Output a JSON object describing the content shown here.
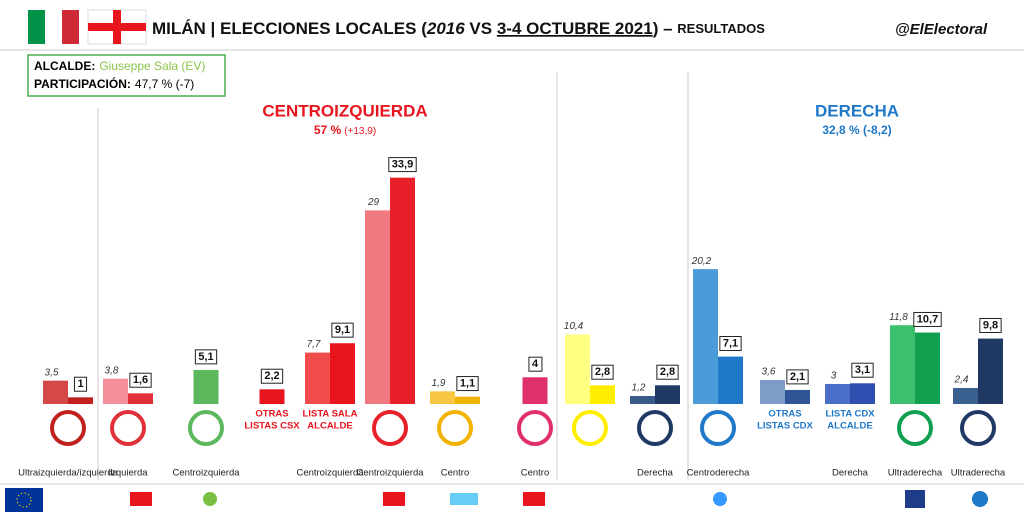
{
  "chart_data": {
    "type": "bar",
    "title_parts": [
      "MILÁN | ELECCIONES LOCALES (",
      "2016",
      " VS ",
      "3-4 OCTUBRE 2021",
      ") – ",
      "RESULTADOS"
    ],
    "handle": "@ElElectoral",
    "info": {
      "alcalde_label": "ALCALDE:",
      "alcalde": "Giuseppe Sala (EV)",
      "participacion_label": "PARTICIPACIÓN:",
      "participacion": "47,7 % (-7)"
    },
    "blocs": [
      {
        "name": "CENTROIZQUIERDA",
        "result": "57 %",
        "change": "(+13,9)",
        "color": "#e8141e"
      },
      {
        "name": "DERECHA",
        "result": "32,8 % (-8,2)",
        "change": null,
        "color": "#1f78c8"
      }
    ],
    "categories": [
      "Ultraizquierda/izquierda",
      "Izquierda",
      "Centroizquierda",
      null,
      "Centroizquierda",
      "Centroizquierda",
      "Centro",
      "Centro",
      null,
      "Derecha",
      "Centroderecha",
      null,
      "Derecha",
      "Ultraderecha",
      "Ultraderecha"
    ],
    "party_labels": [
      null,
      null,
      null,
      [
        "OTRAS",
        "LISTAS CSX"
      ],
      [
        "LISTA SALA",
        "ALCALDE"
      ],
      null,
      null,
      null,
      null,
      null,
      null,
      [
        "OTRAS",
        "LISTAS CDX"
      ],
      [
        "LISTA CDX",
        "ALCALDE"
      ],
      null,
      null
    ],
    "series": [
      {
        "colors": [
          "#d54848",
          "#f4909c",
          null,
          null,
          "#f24b4b",
          "#f07a80",
          "#f7c744",
          null,
          "#ffff80",
          "#3a5a8a",
          "#4b9bd9",
          "#7f9cc8",
          "#4b6fc8",
          "#3cc070",
          "#3a6090"
        ],
        "values": [
          3.5,
          3.8,
          null,
          null,
          7.7,
          29,
          1.9,
          null,
          10.4,
          1.2,
          20.2,
          3.6,
          3,
          11.8,
          2.4
        ],
        "value_labels": [
          "3,5",
          "3,8",
          null,
          null,
          "7,7",
          "29",
          "1,9",
          null,
          "10,4",
          "1,2",
          "20,2",
          "3,6",
          "3",
          "11,8",
          "2,4"
        ]
      },
      {
        "colors": [
          "#c0201e",
          "#e0303a",
          "#5cb85c",
          "#e8141e",
          "#e8141e",
          "#e8202a",
          "#f0b400",
          "#e0306a",
          "#ffee00",
          "#1f3864",
          "#1f78c8",
          "#2f5597",
          "#2f4fb0",
          "#10a050",
          "#1f3864"
        ],
        "values": [
          1,
          1.6,
          5.1,
          2.2,
          9.1,
          33.9,
          1.1,
          4,
          2.8,
          2.8,
          7.1,
          2.1,
          3.1,
          10.7,
          9.8
        ],
        "value_labels": [
          "1",
          "1,6",
          "5,1",
          "2,2",
          "9,1",
          "33,9",
          "1,1",
          "4",
          "2,8",
          "2,8",
          "7,1",
          "2,1",
          "3,1",
          "10,7",
          "9,8"
        ]
      }
    ],
    "ylim": [
      0,
      34
    ]
  }
}
